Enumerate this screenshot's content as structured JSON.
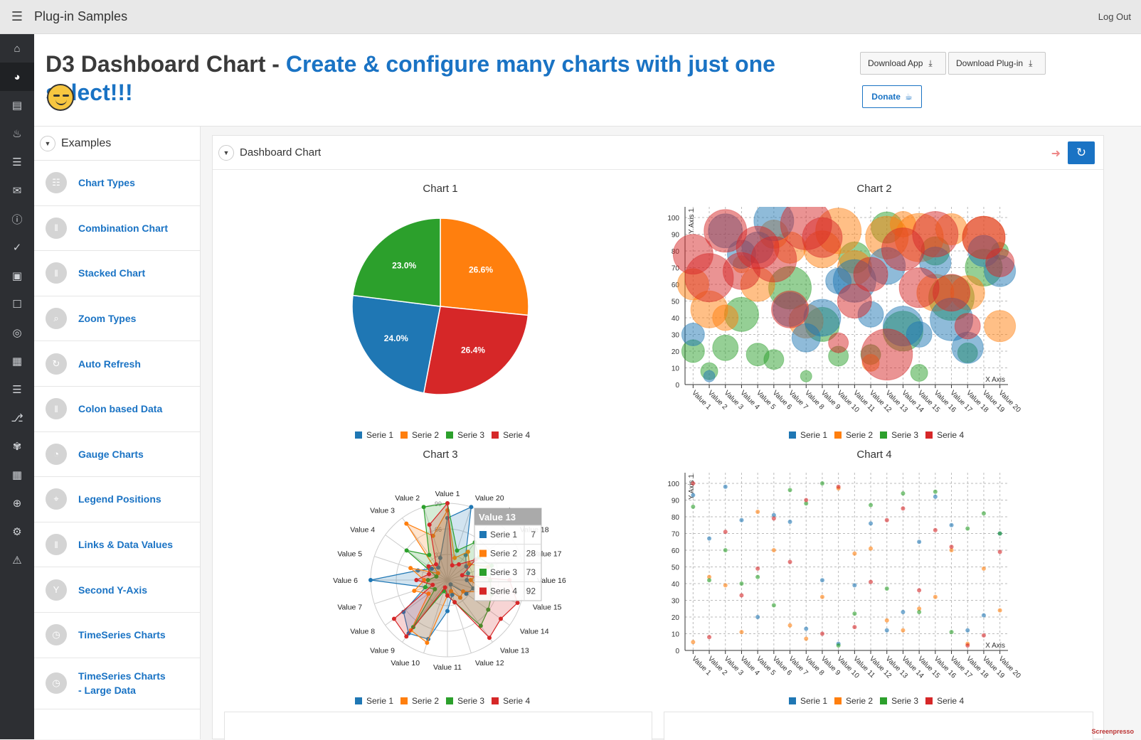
{
  "app": {
    "title": "Plug-in Samples",
    "logout": "Log Out"
  },
  "header": {
    "title_prefix": "D3 Dashboard Chart - ",
    "title_highlight": "Create & configure many charts with just one select!!!",
    "download_app": "Download App",
    "download_plugin": "Download Plug-in",
    "donate": "Donate"
  },
  "left_nav": {
    "title": "Examples",
    "items": [
      {
        "label": "Chart Types",
        "icon": "chart-types-icon"
      },
      {
        "label": "Combination Chart",
        "icon": "columns-icon"
      },
      {
        "label": "Stacked Chart",
        "icon": "columns-icon"
      },
      {
        "label": "Zoom Types",
        "icon": "zoom-icon"
      },
      {
        "label": "Auto Refresh",
        "icon": "refresh-icon"
      },
      {
        "label": "Colon based Data",
        "icon": "columns-icon"
      },
      {
        "label": "Gauge Charts",
        "icon": "gauge-icon"
      },
      {
        "label": "Legend Positions",
        "icon": "map-pin-icon"
      },
      {
        "label": "Links & Data Values",
        "icon": "columns-icon"
      },
      {
        "label": "Second Y-Axis",
        "icon": "y-axis-icon"
      },
      {
        "label": "TimeSeries Charts",
        "icon": "clock-icon"
      },
      {
        "label": "TimeSeries Charts - Large Data",
        "icon": "clock-icon"
      }
    ]
  },
  "region": {
    "title": "Dashboard Chart"
  },
  "colors": {
    "s1": "#1f77b4",
    "s2": "#ff7f0e",
    "s3": "#2ca02c",
    "s4": "#d62728",
    "accent": "#1a73c4"
  },
  "legend": [
    "Serie 1",
    "Serie 2",
    "Serie 3",
    "Serie 4"
  ],
  "chart_data": [
    {
      "type": "pie",
      "title": "Chart 1",
      "labels": [
        "Serie 1",
        "Serie 2",
        "Serie 3",
        "Serie 4"
      ],
      "values": [
        24.0,
        26.6,
        23.0,
        26.4
      ],
      "value_labels": [
        "24.0%",
        "26.6%",
        "23.0%",
        "26.4%"
      ]
    },
    {
      "type": "scatter",
      "title": "Chart 2",
      "variant": "bubble",
      "xlabel": "X Axis",
      "ylabel": "Y Axis 1",
      "ylim": [
        0,
        100
      ],
      "categories": [
        "Value 1",
        "Value 2",
        "Value 3",
        "Value 4",
        "Value 5",
        "Value 6",
        "Value 7",
        "Value 8",
        "Value 9",
        "Value 10",
        "Value 11",
        "Value 12",
        "Value 13",
        "Value 14",
        "Value 15",
        "Value 16",
        "Value 17",
        "Value 18",
        "Value 19",
        "Value 20"
      ],
      "yticks": [
        0,
        10,
        20,
        30,
        40,
        50,
        60,
        70,
        80,
        90,
        100
      ],
      "series": [
        {
          "name": "Serie 1",
          "values": [
            30,
            5,
            92,
            78,
            82,
            98,
            45,
            28,
            40,
            62,
            62,
            42,
            71,
            35,
            30,
            73,
            39,
            22,
            80,
            68
          ]
        },
        {
          "name": "Serie 2",
          "values": [
            60,
            45,
            40,
            72,
            60,
            90,
            82,
            38,
            81,
            92,
            70,
            13,
            88,
            96,
            88,
            55,
            93,
            55,
            88,
            35
          ]
        },
        {
          "name": "Serie 3",
          "values": [
            20,
            8,
            22,
            42,
            18,
            15,
            58,
            5,
            36,
            17,
            76,
            18,
            94,
            32,
            7,
            80,
            52,
            19,
            70,
            80
          ]
        },
        {
          "name": "Serie 4",
          "values": [
            78,
            64,
            92,
            68,
            82,
            75,
            45,
            96,
            88,
            25,
            50,
            66,
            18,
            81,
            58,
            90,
            55,
            35,
            88,
            73
          ]
        }
      ],
      "sizes": [
        [
          16,
          8,
          24,
          20,
          22,
          28,
          24,
          20,
          26,
          18,
          30,
          18,
          26,
          28,
          18,
          22,
          30,
          22,
          22,
          22
        ],
        [
          22,
          26,
          18,
          12,
          24,
          20,
          22,
          24,
          26,
          32,
          24,
          12,
          30,
          18,
          34,
          26,
          22,
          24,
          30,
          22
        ],
        [
          16,
          12,
          18,
          24,
          16,
          14,
          30,
          8,
          24,
          14,
          22,
          14,
          22,
          28,
          12,
          20,
          32,
          14,
          26,
          12
        ],
        [
          28,
          34,
          30,
          26,
          30,
          32,
          26,
          36,
          28,
          14,
          24,
          24,
          36,
          30,
          28,
          32,
          26,
          18,
          30,
          20
        ]
      ]
    },
    {
      "type": "radar",
      "title": "Chart 3",
      "rmax": 99,
      "rings": [
        33,
        66,
        99
      ],
      "axes": [
        "Value 1",
        "Value 20",
        "Value 19",
        "Value 18",
        "Value 17",
        "Value 16",
        "Value 15",
        "Value 14",
        "Value 13",
        "Value 12",
        "Value 11",
        "Value 10",
        "Value 9",
        "Value 8",
        "Value 7",
        "Value 6",
        "Value 5",
        "Value 4",
        "Value 3",
        "Value 2"
      ],
      "series": [
        {
          "name": "Serie 1",
          "values": [
            80,
            99,
            40,
            30,
            28,
            25,
            35,
            30,
            7,
            20,
            40,
            80,
            85,
            70,
            30,
            99,
            40,
            25,
            20,
            30
          ]
        },
        {
          "name": "Serie 2",
          "values": [
            90,
            30,
            45,
            35,
            55,
            30,
            50,
            25,
            28,
            15,
            20,
            85,
            80,
            30,
            45,
            30,
            50,
            15,
            90,
            60
          ]
        },
        {
          "name": "Serie 3",
          "values": [
            99,
            40,
            60,
            50,
            60,
            55,
            60,
            65,
            73,
            30,
            20,
            15,
            75,
            20,
            30,
            25,
            15,
            65,
            40,
            99
          ]
        },
        {
          "name": "Serie 4",
          "values": [
            99,
            20,
            25,
            45,
            20,
            80,
            95,
            85,
            92,
            30,
            20,
            10,
            90,
            85,
            20,
            40,
            25,
            30,
            25,
            75
          ]
        }
      ],
      "tooltip": {
        "title": "Value 13",
        "rows": [
          {
            "name": "Serie 1",
            "value": "7"
          },
          {
            "name": "Serie 2",
            "value": "28"
          },
          {
            "name": "Serie 3",
            "value": "73"
          },
          {
            "name": "Serie 4",
            "value": "92"
          }
        ]
      }
    },
    {
      "type": "scatter",
      "title": "Chart 4",
      "xlabel": "X Axis",
      "ylabel": "Y Axis 1",
      "ylim": [
        0,
        100
      ],
      "categories": [
        "Value 1",
        "Value 2",
        "Value 3",
        "Value 4",
        "Value 5",
        "Value 6",
        "Value 7",
        "Value 8",
        "Value 9",
        "Value 10",
        "Value 11",
        "Value 12",
        "Value 13",
        "Value 14",
        "Value 15",
        "Value 16",
        "Value 17",
        "Value 18",
        "Value 19",
        "Value 20"
      ],
      "yticks": [
        0,
        10,
        20,
        30,
        40,
        50,
        60,
        70,
        80,
        90,
        100
      ],
      "series": [
        {
          "name": "Serie 1",
          "values": [
            93,
            67,
            98,
            78,
            20,
            81,
            77,
            13,
            42,
            4,
            39,
            76,
            12,
            23,
            65,
            92,
            75,
            12,
            21,
            70
          ]
        },
        {
          "name": "Serie 2",
          "values": [
            5,
            44,
            39,
            11,
            83,
            60,
            15,
            7,
            32,
            97,
            58,
            61,
            18,
            12,
            25,
            32,
            60,
            4,
            49,
            24
          ]
        },
        {
          "name": "Serie 3",
          "values": [
            86,
            42,
            60,
            40,
            44,
            27,
            96,
            88,
            100,
            3,
            22,
            87,
            37,
            94,
            23,
            95,
            11,
            73,
            82,
            70
          ]
        },
        {
          "name": "Serie 4",
          "values": [
            100,
            8,
            71,
            33,
            49,
            79,
            53,
            90,
            10,
            98,
            14,
            41,
            78,
            85,
            36,
            72,
            62,
            3,
            9,
            59
          ]
        }
      ]
    }
  ]
}
